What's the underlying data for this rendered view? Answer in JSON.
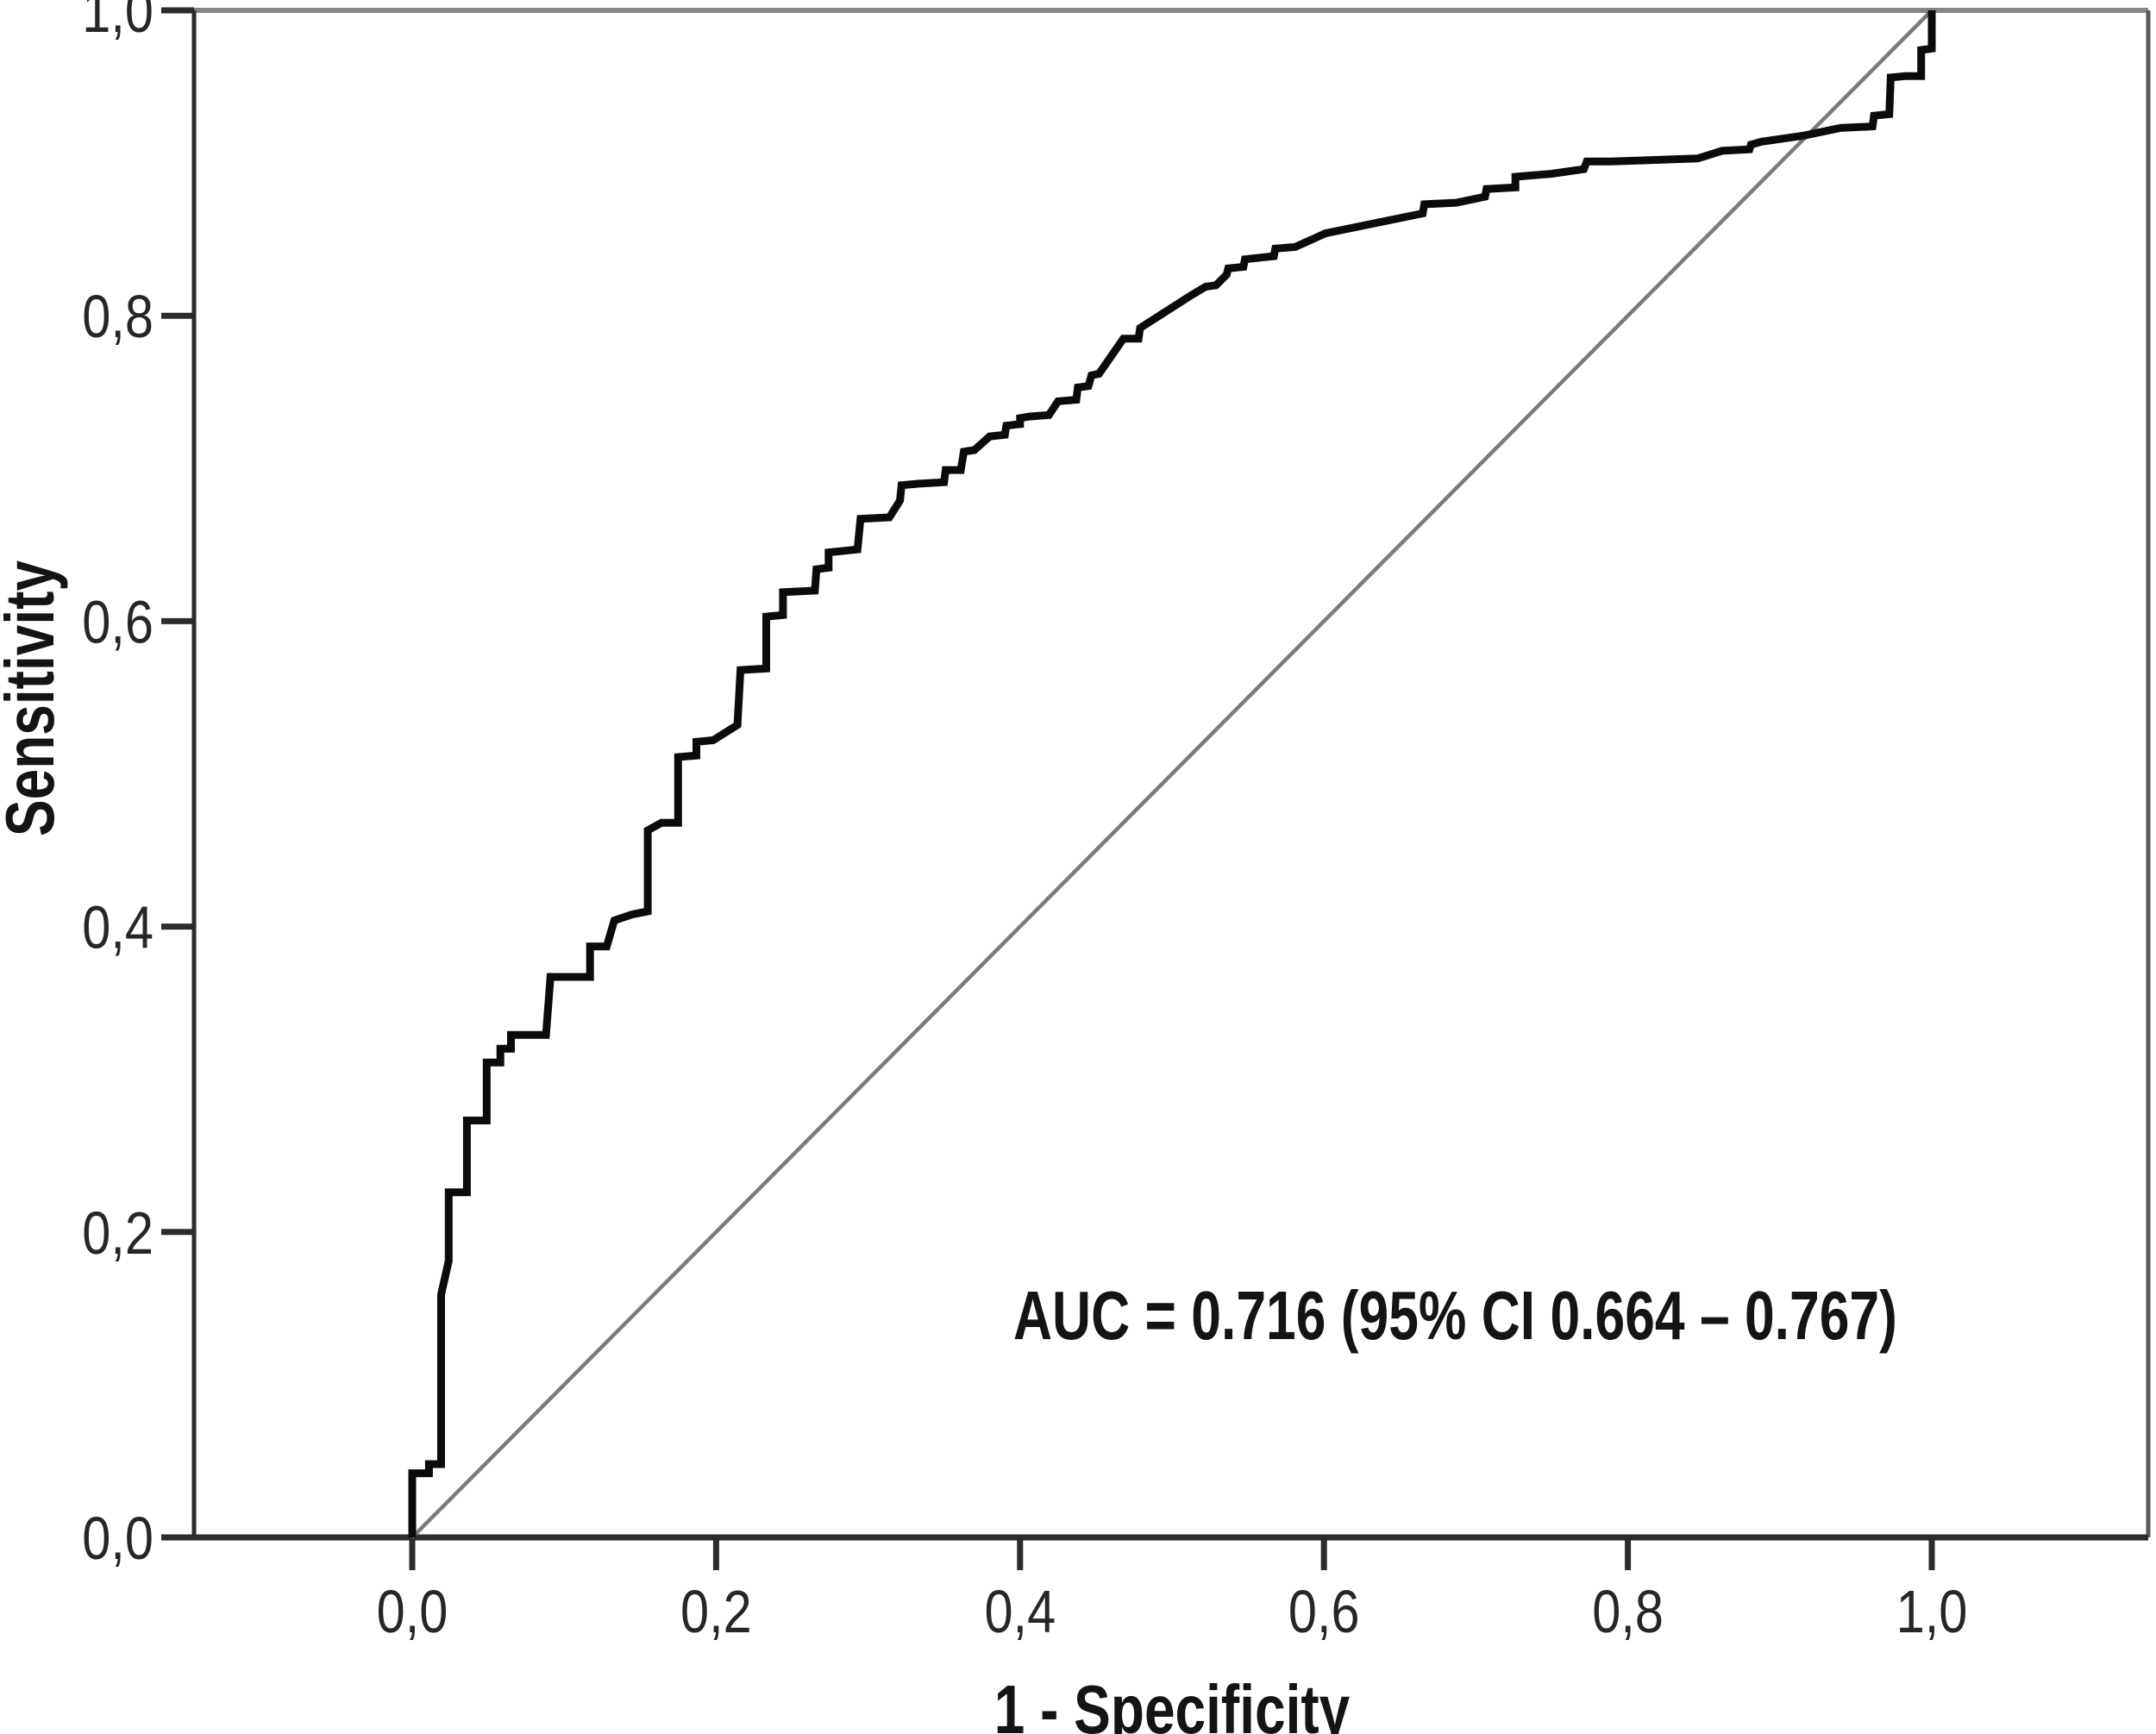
{
  "chart_data": {
    "type": "line",
    "subtype": "roc-curve",
    "title": "",
    "xlabel": "1 - Specificity",
    "ylabel": "Sensitivity",
    "x_ticks": [
      "0,0",
      "0,2",
      "0,4",
      "0,6",
      "0,8",
      "1,0"
    ],
    "y_ticks": [
      "0,0",
      "0,2",
      "0,4",
      "0,6",
      "0,8",
      "1,0"
    ],
    "x_tick_values": [
      0,
      0.2,
      0.4,
      0.6,
      0.8,
      1.0
    ],
    "y_tick_values": [
      0,
      0.2,
      0.4,
      0.6,
      0.8,
      1.0
    ],
    "xlim": [
      0,
      1
    ],
    "ylim": [
      0,
      1
    ],
    "grid": false,
    "legend": "none",
    "annotation": "AUC = 0.716 (95% CI 0.664 – 0.767)",
    "auc": 0.716,
    "ci_low": 0.664,
    "ci_high": 0.767,
    "colors": {
      "curve": "#0b0b0b",
      "reference": "#7b7b7b",
      "axis": "#2b2b2b",
      "frame_top": "#868686",
      "frame_right": "#5a5a5a",
      "text": "#141414"
    },
    "series": [
      {
        "name": "ROC curve",
        "color": "#0b0b0b",
        "points": [
          [
            0.0,
            0.0
          ],
          [
            0.0,
            0.042
          ],
          [
            0.011,
            0.042
          ],
          [
            0.011,
            0.048
          ],
          [
            0.019,
            0.048
          ],
          [
            0.019,
            0.159
          ],
          [
            0.024,
            0.181
          ],
          [
            0.024,
            0.226
          ],
          [
            0.036,
            0.226
          ],
          [
            0.036,
            0.273
          ],
          [
            0.049,
            0.273
          ],
          [
            0.049,
            0.311
          ],
          [
            0.058,
            0.311
          ],
          [
            0.058,
            0.32
          ],
          [
            0.065,
            0.32
          ],
          [
            0.065,
            0.329
          ],
          [
            0.088,
            0.329
          ],
          [
            0.091,
            0.367
          ],
          [
            0.117,
            0.367
          ],
          [
            0.117,
            0.387
          ],
          [
            0.128,
            0.387
          ],
          [
            0.133,
            0.404
          ],
          [
            0.145,
            0.408
          ],
          [
            0.155,
            0.41
          ],
          [
            0.155,
            0.463
          ],
          [
            0.164,
            0.468
          ],
          [
            0.175,
            0.468
          ],
          [
            0.175,
            0.511
          ],
          [
            0.187,
            0.512
          ],
          [
            0.187,
            0.521
          ],
          [
            0.198,
            0.522
          ],
          [
            0.214,
            0.532
          ],
          [
            0.216,
            0.568
          ],
          [
            0.233,
            0.569
          ],
          [
            0.233,
            0.603
          ],
          [
            0.244,
            0.604
          ],
          [
            0.244,
            0.619
          ],
          [
            0.265,
            0.62
          ],
          [
            0.266,
            0.634
          ],
          [
            0.274,
            0.635
          ],
          [
            0.274,
            0.645
          ],
          [
            0.293,
            0.647
          ],
          [
            0.295,
            0.667
          ],
          [
            0.314,
            0.668
          ],
          [
            0.321,
            0.679
          ],
          [
            0.322,
            0.689
          ],
          [
            0.333,
            0.69
          ],
          [
            0.35,
            0.691
          ],
          [
            0.351,
            0.699
          ],
          [
            0.361,
            0.699
          ],
          [
            0.363,
            0.711
          ],
          [
            0.37,
            0.712
          ],
          [
            0.38,
            0.721
          ],
          [
            0.39,
            0.722
          ],
          [
            0.391,
            0.728
          ],
          [
            0.4,
            0.729
          ],
          [
            0.4,
            0.733
          ],
          [
            0.406,
            0.734
          ],
          [
            0.419,
            0.735
          ],
          [
            0.425,
            0.744
          ],
          [
            0.437,
            0.745
          ],
          [
            0.438,
            0.753
          ],
          [
            0.445,
            0.754
          ],
          [
            0.447,
            0.761
          ],
          [
            0.452,
            0.762
          ],
          [
            0.468,
            0.785
          ],
          [
            0.478,
            0.785
          ],
          [
            0.479,
            0.792
          ],
          [
            0.512,
            0.813
          ],
          [
            0.522,
            0.819
          ],
          [
            0.529,
            0.82
          ],
          [
            0.536,
            0.827
          ],
          [
            0.537,
            0.831
          ],
          [
            0.547,
            0.832
          ],
          [
            0.548,
            0.837
          ],
          [
            0.567,
            0.839
          ],
          [
            0.568,
            0.844
          ],
          [
            0.581,
            0.845
          ],
          [
            0.601,
            0.854
          ],
          [
            0.665,
            0.867
          ],
          [
            0.666,
            0.873
          ],
          [
            0.687,
            0.874
          ],
          [
            0.706,
            0.878
          ],
          [
            0.707,
            0.883
          ],
          [
            0.726,
            0.884
          ],
          [
            0.726,
            0.891
          ],
          [
            0.75,
            0.893
          ],
          [
            0.771,
            0.896
          ],
          [
            0.773,
            0.901
          ],
          [
            0.789,
            0.901
          ],
          [
            0.846,
            0.903
          ],
          [
            0.862,
            0.908
          ],
          [
            0.88,
            0.909
          ],
          [
            0.881,
            0.912
          ],
          [
            0.888,
            0.914
          ],
          [
            0.916,
            0.918
          ],
          [
            0.94,
            0.923
          ],
          [
            0.961,
            0.924
          ],
          [
            0.962,
            0.931
          ],
          [
            0.972,
            0.932
          ],
          [
            0.973,
            0.956
          ],
          [
            0.983,
            0.957
          ],
          [
            0.993,
            0.957
          ],
          [
            0.993,
            0.974
          ],
          [
            1.0,
            0.975
          ],
          [
            1.0,
            0.999
          ],
          [
            1.0,
            1.0
          ]
        ]
      },
      {
        "name": "Reference diagonal",
        "color": "#7b7b7b",
        "points": [
          [
            0,
            0
          ],
          [
            1,
            1
          ]
        ]
      }
    ]
  }
}
